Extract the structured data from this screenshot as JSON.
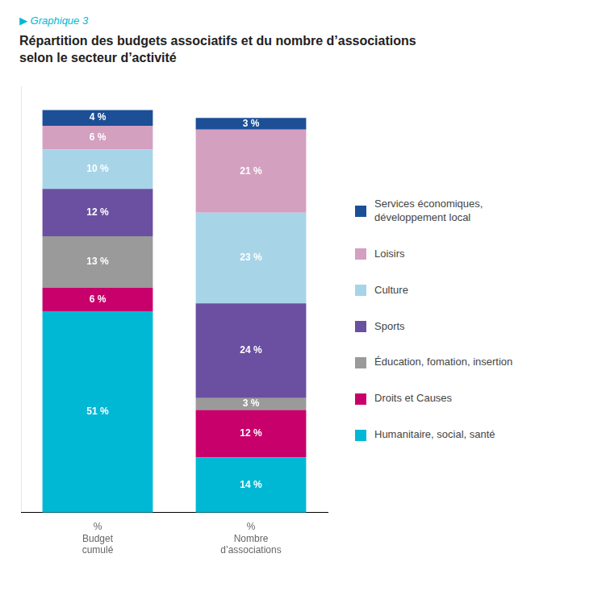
{
  "chart_data": {
    "type": "bar",
    "stacked": true,
    "subtitle": "▶  Graphique 3",
    "title": "Répartition des budgets associatifs et du nombre d’associations\nselon le secteur d’activité",
    "categories": [
      "%\nBudget\ncumulé",
      "%\nNombre\nd’associations"
    ],
    "series": [
      {
        "name": "Services économiques,\ndéveloppement local",
        "color": "#1c4f96",
        "values": [
          4,
          3
        ],
        "value_labels": [
          "4 %",
          "3 %"
        ]
      },
      {
        "name": "Loisirs",
        "color": "#d4a0c0",
        "values": [
          6,
          21
        ],
        "value_labels": [
          "6 %",
          "21 %"
        ]
      },
      {
        "name": "Culture",
        "color": "#a8d4e8",
        "values": [
          10,
          23
        ],
        "value_labels": [
          "10 %",
          "23 %"
        ]
      },
      {
        "name": "Sports",
        "color": "#6b4fa0",
        "values": [
          12,
          24
        ],
        "value_labels": [
          "12 %",
          "24 %"
        ]
      },
      {
        "name": "Éducation, fomation, insertion",
        "color": "#9a9a9a",
        "values": [
          13,
          3
        ],
        "value_labels": [
          "13 %",
          "3 %"
        ]
      },
      {
        "name": "Droits et Causes",
        "color": "#c8006c",
        "values": [
          6,
          12
        ],
        "value_labels": [
          "6 %",
          "12 %"
        ]
      },
      {
        "name": "Humanitaire, social, santé",
        "color": "#00b8d4",
        "values": [
          51,
          14
        ],
        "value_labels": [
          "51 %",
          "14 %"
        ]
      }
    ],
    "ylim": [
      0,
      108
    ],
    "tick_labels": "x",
    "grid": false,
    "legend": "right",
    "data_labels": true
  }
}
